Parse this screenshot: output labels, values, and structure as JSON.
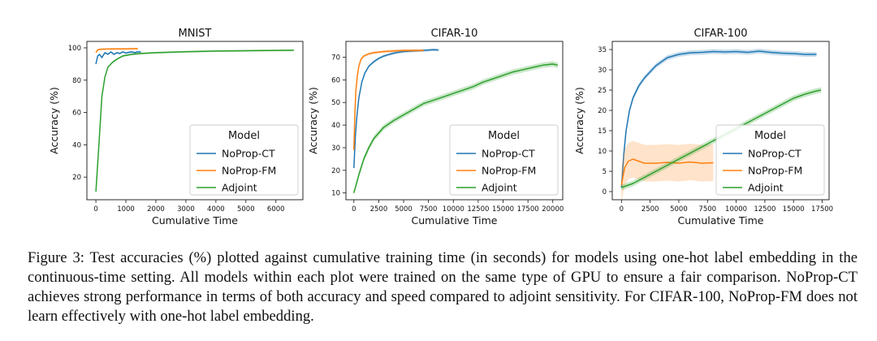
{
  "chart_data": [
    {
      "type": "line",
      "title": "MNIST",
      "xlabel": "Cumulative Time",
      "ylabel": "Accuracy (%)",
      "xlim": [
        -300,
        6900
      ],
      "ylim": [
        6,
        104
      ],
      "xticks": [
        0,
        1000,
        2000,
        3000,
        4000,
        5000,
        6000
      ],
      "yticks": [
        20,
        40,
        60,
        80,
        100
      ],
      "legend": {
        "title": "Model",
        "position": "lower-right"
      },
      "series": [
        {
          "name": "NoProp-CT",
          "color": "#1f77b4",
          "points": [
            [
              0,
              90
            ],
            [
              60,
              95
            ],
            [
              120,
              96
            ],
            [
              200,
              94
            ],
            [
              300,
              97
            ],
            [
              400,
              96
            ],
            [
              500,
              97.5
            ],
            [
              600,
              96
            ],
            [
              700,
              97
            ],
            [
              800,
              96.5
            ],
            [
              900,
              97.5
            ],
            [
              1000,
              96.8
            ],
            [
              1100,
              97.2
            ],
            [
              1200,
              97.5
            ],
            [
              1300,
              97
            ],
            [
              1400,
              97.6
            ],
            [
              1500,
              97.4
            ]
          ]
        },
        {
          "name": "NoProp-FM",
          "color": "#ff7f0e",
          "points": [
            [
              0,
              97
            ],
            [
              50,
              98.5
            ],
            [
              100,
              99
            ],
            [
              200,
              99.2
            ],
            [
              400,
              99.3
            ],
            [
              600,
              99.4
            ],
            [
              800,
              99.4
            ],
            [
              1000,
              99.4
            ],
            [
              1200,
              99.5
            ],
            [
              1400,
              99.5
            ]
          ]
        },
        {
          "name": "Adjoint",
          "color": "#2ca02c",
          "points": [
            [
              0,
              11
            ],
            [
              100,
              40
            ],
            [
              200,
              70
            ],
            [
              300,
              82
            ],
            [
              400,
              88
            ],
            [
              550,
              91
            ],
            [
              700,
              93
            ],
            [
              900,
              95
            ],
            [
              1200,
              96
            ],
            [
              1500,
              96.5
            ],
            [
              2000,
              97
            ],
            [
              3000,
              97.6
            ],
            [
              4000,
              98
            ],
            [
              5000,
              98.2
            ],
            [
              6000,
              98.4
            ],
            [
              6600,
              98.5
            ]
          ]
        }
      ]
    },
    {
      "type": "line",
      "title": "CIFAR-10",
      "xlabel": "Cumulative Time",
      "ylabel": "Accuracy (%)",
      "xlim": [
        -800,
        21000
      ],
      "ylim": [
        7,
        77
      ],
      "xticks": [
        0,
        2500,
        5000,
        7500,
        10000,
        12500,
        15000,
        17500,
        20000
      ],
      "yticks": [
        10,
        20,
        30,
        40,
        50,
        60,
        70
      ],
      "legend": {
        "title": "Model",
        "position": "lower-right"
      },
      "series": [
        {
          "name": "NoProp-CT",
          "color": "#1f77b4",
          "points": [
            [
              0,
              21
            ],
            [
              150,
              35
            ],
            [
              300,
              44
            ],
            [
              500,
              52
            ],
            [
              800,
              59
            ],
            [
              1100,
              63
            ],
            [
              1500,
              66
            ],
            [
              2000,
              68
            ],
            [
              2500,
              69.5
            ],
            [
              3000,
              70.5
            ],
            [
              3500,
              71.2
            ],
            [
              4000,
              71.8
            ],
            [
              4500,
              72.2
            ],
            [
              5000,
              72.5
            ],
            [
              6000,
              72.8
            ],
            [
              7000,
              73
            ],
            [
              8000,
              73.3
            ],
            [
              8500,
              73.2
            ]
          ]
        },
        {
          "name": "NoProp-FM",
          "color": "#ff7f0e",
          "points": [
            [
              0,
              29
            ],
            [
              100,
              45
            ],
            [
              200,
              55
            ],
            [
              350,
              62
            ],
            [
              500,
              66
            ],
            [
              700,
              69
            ],
            [
              1000,
              70.5
            ],
            [
              1500,
              71.5
            ],
            [
              2000,
              72
            ],
            [
              3000,
              72.5
            ],
            [
              4000,
              72.8
            ],
            [
              5000,
              73
            ],
            [
              6000,
              73
            ],
            [
              7000,
              73
            ]
          ]
        },
        {
          "name": "Adjoint",
          "color": "#2ca02c",
          "points": [
            [
              0,
              10
            ],
            [
              500,
              18
            ],
            [
              1000,
              25
            ],
            [
              1500,
              30
            ],
            [
              2000,
              34
            ],
            [
              3000,
              39
            ],
            [
              4000,
              42
            ],
            [
              5000,
              44.5
            ],
            [
              6000,
              47
            ],
            [
              7000,
              49.5
            ],
            [
              8000,
              51
            ],
            [
              9000,
              52.5
            ],
            [
              10000,
              54
            ],
            [
              11000,
              55.5
            ],
            [
              12000,
              57
            ],
            [
              13000,
              59
            ],
            [
              14000,
              60.5
            ],
            [
              15000,
              62
            ],
            [
              16000,
              63.5
            ],
            [
              17000,
              64.5
            ],
            [
              18000,
              65.5
            ],
            [
              19000,
              66.5
            ],
            [
              20000,
              67
            ],
            [
              20500,
              66.5
            ]
          ]
        }
      ]
    },
    {
      "type": "line",
      "title": "CIFAR-100",
      "xlabel": "Cumulative Time",
      "ylabel": "Accuracy (%)",
      "xlim": [
        -800,
        18100
      ],
      "ylim": [
        -2,
        37
      ],
      "xticks": [
        0,
        2500,
        5000,
        7500,
        10000,
        12500,
        15000,
        17500
      ],
      "yticks": [
        0,
        5,
        10,
        15,
        20,
        25,
        30,
        35
      ],
      "legend": {
        "title": "Model",
        "position": "lower-right"
      },
      "series": [
        {
          "name": "NoProp-CT",
          "color": "#1f77b4",
          "points": [
            [
              0,
              1
            ],
            [
              200,
              9
            ],
            [
              400,
              15
            ],
            [
              700,
              20
            ],
            [
              1000,
              23
            ],
            [
              1500,
              26
            ],
            [
              2000,
              28
            ],
            [
              2500,
              29.5
            ],
            [
              3000,
              31
            ],
            [
              3500,
              32
            ],
            [
              4000,
              33
            ],
            [
              5000,
              33.8
            ],
            [
              6000,
              34.2
            ],
            [
              7000,
              34.3
            ],
            [
              8000,
              34.5
            ],
            [
              9000,
              34.4
            ],
            [
              10000,
              34.5
            ],
            [
              11000,
              34.3
            ],
            [
              12000,
              34.6
            ],
            [
              13000,
              34.3
            ],
            [
              14000,
              34.1
            ],
            [
              15000,
              34
            ],
            [
              16000,
              33.8
            ],
            [
              17000,
              33.8
            ]
          ]
        },
        {
          "name": "NoProp-FM",
          "color": "#ff7f0e",
          "points": [
            [
              0,
              1.5
            ],
            [
              150,
              4
            ],
            [
              300,
              6
            ],
            [
              600,
              7.5
            ],
            [
              1000,
              8
            ],
            [
              1500,
              7.5
            ],
            [
              2000,
              7
            ],
            [
              3000,
              7
            ],
            [
              4000,
              7.2
            ],
            [
              5000,
              7
            ],
            [
              6000,
              7.3
            ],
            [
              7000,
              7
            ],
            [
              8000,
              7.1
            ]
          ]
        },
        {
          "name": "Adjoint",
          "color": "#2ca02c",
          "points": [
            [
              0,
              1
            ],
            [
              1000,
              2
            ],
            [
              2000,
              3.5
            ],
            [
              3000,
              5
            ],
            [
              4000,
              6.5
            ],
            [
              5000,
              8
            ],
            [
              6000,
              9.5
            ],
            [
              7000,
              11
            ],
            [
              8000,
              12.5
            ],
            [
              9000,
              14
            ],
            [
              10000,
              15.5
            ],
            [
              11000,
              17
            ],
            [
              12000,
              18.5
            ],
            [
              13000,
              20
            ],
            [
              14000,
              21.5
            ],
            [
              15000,
              23
            ],
            [
              16000,
              24
            ],
            [
              17000,
              24.8
            ],
            [
              17400,
              25
            ]
          ]
        }
      ]
    }
  ],
  "caption": {
    "label": "Figure 3:",
    "text": "Test accuracies (%) plotted against cumulative training time (in seconds) for models using one-hot label embedding in the continuous-time setting.  All models within each plot were trained on the same type of GPU to ensure a fair comparison. NoProp-CT achieves strong performance in terms of both accuracy and speed compared to adjoint sensitivity. For CIFAR-100, NoProp-FM does not learn effectively with one-hot label embedding."
  }
}
